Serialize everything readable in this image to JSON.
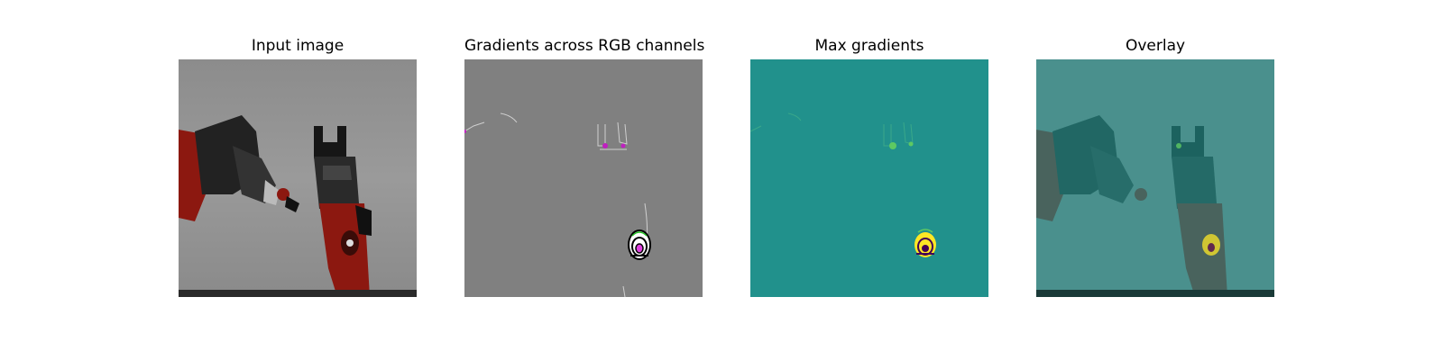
{
  "figure": {
    "panels": [
      {
        "title": "Input image"
      },
      {
        "title": "Gradients across RGB channels"
      },
      {
        "title": "Max gradients"
      },
      {
        "title": "Overlay"
      }
    ]
  }
}
